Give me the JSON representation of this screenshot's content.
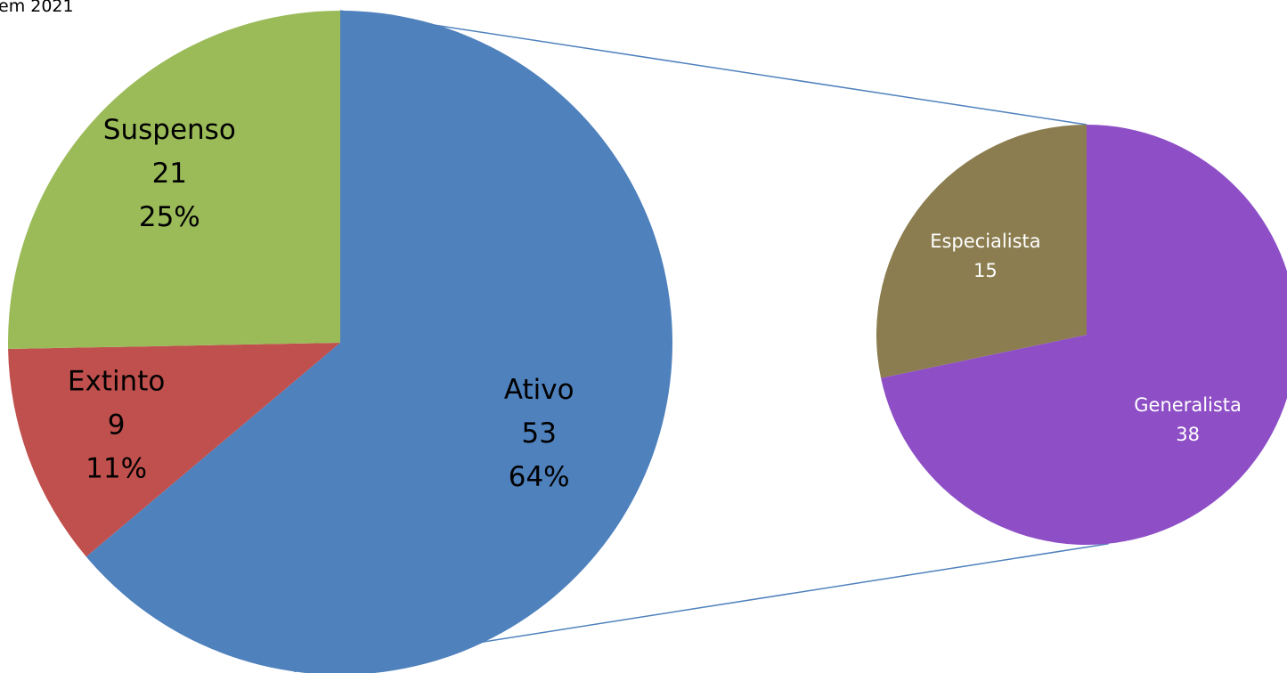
{
  "title": "em 2021",
  "colors": {
    "connector": "#4F81BD",
    "main_label": "#000000",
    "sub_label": "#FFFFFF"
  },
  "chart_data": {
    "type": "pie",
    "subtype": "pie-of-pie",
    "main_pie": {
      "slices": [
        {
          "name": "Ativo",
          "value": 53,
          "percent": "64%",
          "color": "#4F81BD"
        },
        {
          "name": "Extinto",
          "value": 9,
          "percent": "11%",
          "color": "#C0504D"
        },
        {
          "name": "Suspenso",
          "value": 21,
          "percent": "25%",
          "color": "#9BBB59"
        }
      ]
    },
    "breakout": {
      "of": "Ativo",
      "slices": [
        {
          "name": "Generalista",
          "value": 38,
          "color": "#8E4FC6"
        },
        {
          "name": "Especialista",
          "value": 15,
          "color": "#8B7D4F"
        }
      ]
    }
  }
}
